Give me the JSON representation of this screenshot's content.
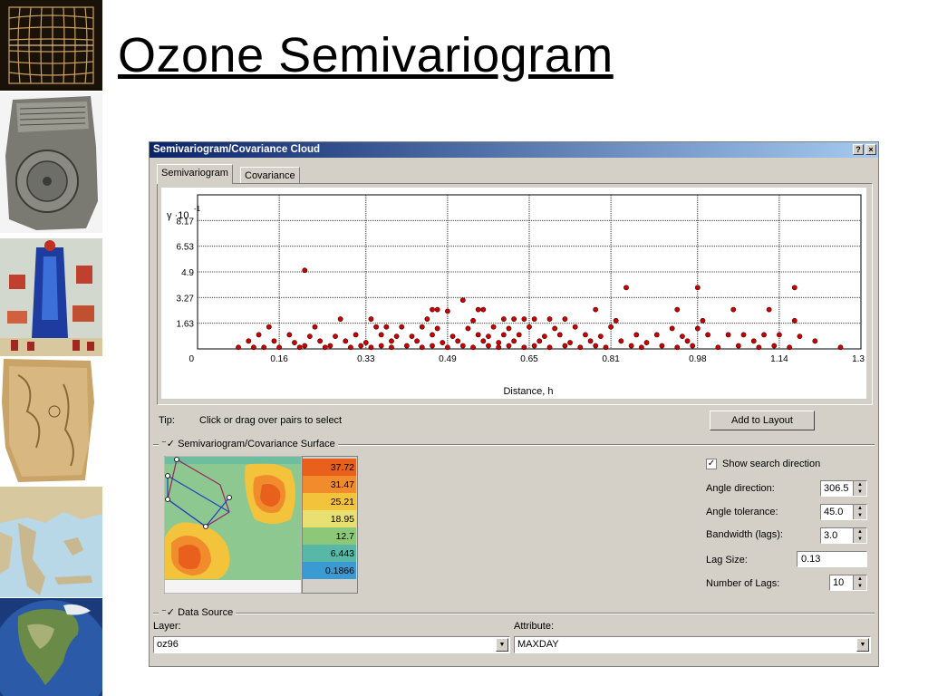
{
  "slide": {
    "title": "Ozone Semivariogram"
  },
  "window": {
    "title": "Semivariogram/Covariance Cloud",
    "help_button": "?",
    "close_button": "×",
    "tabs": [
      "Semivariogram",
      "Covariance"
    ],
    "tip_label": "Tip:",
    "tip_text": "Click or drag over pairs to select",
    "add_to_layout": "Add to Layout",
    "surface_group": "Semivariogram/Covariance Surface",
    "surface_legend": [
      "37.72",
      "31.47",
      "25.21",
      "18.95",
      "12.7",
      "6.443",
      "0.1866"
    ],
    "surface_colors": [
      "#e8601c",
      "#f08c2c",
      "#f3c33c",
      "#e8e070",
      "#8cc878",
      "#58b8a8",
      "#3b9ad2"
    ],
    "show_search_direction": "Show search direction",
    "show_search_checked": true,
    "angle_direction_label": "Angle direction:",
    "angle_direction_value": "306.5",
    "angle_tolerance_label": "Angle tolerance:",
    "angle_tolerance_value": "45.0",
    "bandwidth_label": "Bandwidth (lags):",
    "bandwidth_value": "3.0",
    "lag_size_label": "Lag Size:",
    "lag_size_value": "0.13",
    "num_lags_label": "Number of Lags:",
    "num_lags_value": "10",
    "data_source_group": "Data Source",
    "layer_label": "Layer:",
    "layer_value": "oz96",
    "attribute_label": "Attribute:",
    "attribute_value": "MAXDAY"
  },
  "chart_data": {
    "type": "scatter",
    "ylabel": "γ ·10",
    "ylabel_exponent": "-1",
    "xlabel": "Distance, h",
    "x_ticks": [
      "0",
      "0.16",
      "0.33",
      "0.49",
      "0.65",
      "0.81",
      "0.98",
      "1.14",
      "1.3"
    ],
    "y_ticks": [
      "1.63",
      "3.27",
      "4.9",
      "6.53",
      "8.17"
    ],
    "xlim": [
      0,
      1.3
    ],
    "ylim": [
      0,
      9.8
    ],
    "point_color": "#cc0000",
    "points": [
      [
        0.21,
        5.0
      ],
      [
        0.84,
        3.9
      ],
      [
        0.98,
        3.9
      ],
      [
        1.17,
        3.9
      ],
      [
        0.52,
        3.1
      ],
      [
        0.46,
        2.5
      ],
      [
        0.47,
        2.5
      ],
      [
        0.55,
        2.5
      ],
      [
        0.56,
        2.5
      ],
      [
        0.49,
        2.4
      ],
      [
        0.78,
        2.5
      ],
      [
        0.94,
        2.5
      ],
      [
        1.05,
        2.5
      ],
      [
        1.12,
        2.5
      ],
      [
        0.28,
        1.9
      ],
      [
        0.34,
        1.9
      ],
      [
        0.45,
        1.9
      ],
      [
        0.54,
        1.8
      ],
      [
        0.6,
        1.9
      ],
      [
        0.62,
        1.9
      ],
      [
        0.64,
        1.9
      ],
      [
        0.66,
        1.9
      ],
      [
        0.69,
        1.9
      ],
      [
        0.72,
        1.9
      ],
      [
        0.82,
        1.8
      ],
      [
        0.99,
        1.8
      ],
      [
        1.17,
        1.8
      ],
      [
        0.14,
        1.4
      ],
      [
        0.23,
        1.4
      ],
      [
        0.35,
        1.4
      ],
      [
        0.37,
        1.4
      ],
      [
        0.4,
        1.4
      ],
      [
        0.44,
        1.4
      ],
      [
        0.47,
        1.3
      ],
      [
        0.53,
        1.3
      ],
      [
        0.58,
        1.4
      ],
      [
        0.61,
        1.3
      ],
      [
        0.65,
        1.4
      ],
      [
        0.7,
        1.3
      ],
      [
        0.74,
        1.4
      ],
      [
        0.81,
        1.4
      ],
      [
        0.93,
        1.3
      ],
      [
        0.98,
        1.3
      ],
      [
        0.12,
        0.9
      ],
      [
        0.18,
        0.9
      ],
      [
        0.22,
        0.8
      ],
      [
        0.27,
        0.8
      ],
      [
        0.31,
        0.9
      ],
      [
        0.36,
        0.9
      ],
      [
        0.39,
        0.8
      ],
      [
        0.42,
        0.8
      ],
      [
        0.46,
        0.9
      ],
      [
        0.5,
        0.8
      ],
      [
        0.55,
        0.9
      ],
      [
        0.57,
        0.8
      ],
      [
        0.6,
        0.9
      ],
      [
        0.63,
        0.9
      ],
      [
        0.68,
        0.8
      ],
      [
        0.71,
        0.9
      ],
      [
        0.76,
        0.9
      ],
      [
        0.79,
        0.8
      ],
      [
        0.86,
        0.9
      ],
      [
        0.9,
        0.9
      ],
      [
        0.95,
        0.8
      ],
      [
        1.0,
        0.9
      ],
      [
        1.04,
        0.9
      ],
      [
        1.07,
        0.9
      ],
      [
        1.11,
        0.9
      ],
      [
        1.14,
        0.9
      ],
      [
        1.18,
        0.8
      ],
      [
        0.1,
        0.5
      ],
      [
        0.15,
        0.5
      ],
      [
        0.19,
        0.4
      ],
      [
        0.24,
        0.5
      ],
      [
        0.29,
        0.5
      ],
      [
        0.33,
        0.4
      ],
      [
        0.38,
        0.5
      ],
      [
        0.43,
        0.5
      ],
      [
        0.48,
        0.4
      ],
      [
        0.51,
        0.5
      ],
      [
        0.56,
        0.5
      ],
      [
        0.59,
        0.4
      ],
      [
        0.62,
        0.5
      ],
      [
        0.67,
        0.5
      ],
      [
        0.73,
        0.4
      ],
      [
        0.77,
        0.5
      ],
      [
        0.83,
        0.5
      ],
      [
        0.88,
        0.4
      ],
      [
        0.96,
        0.5
      ],
      [
        1.09,
        0.5
      ],
      [
        1.21,
        0.5
      ],
      [
        0.08,
        0.1
      ],
      [
        0.11,
        0.1
      ],
      [
        0.13,
        0.1
      ],
      [
        0.16,
        0.1
      ],
      [
        0.2,
        0.1
      ],
      [
        0.21,
        0.2
      ],
      [
        0.25,
        0.1
      ],
      [
        0.26,
        0.2
      ],
      [
        0.3,
        0.1
      ],
      [
        0.32,
        0.2
      ],
      [
        0.34,
        0.1
      ],
      [
        0.36,
        0.2
      ],
      [
        0.38,
        0.1
      ],
      [
        0.41,
        0.2
      ],
      [
        0.44,
        0.1
      ],
      [
        0.46,
        0.2
      ],
      [
        0.49,
        0.1
      ],
      [
        0.52,
        0.2
      ],
      [
        0.54,
        0.1
      ],
      [
        0.57,
        0.2
      ],
      [
        0.59,
        0.1
      ],
      [
        0.61,
        0.2
      ],
      [
        0.64,
        0.1
      ],
      [
        0.66,
        0.2
      ],
      [
        0.69,
        0.1
      ],
      [
        0.72,
        0.2
      ],
      [
        0.75,
        0.1
      ],
      [
        0.78,
        0.2
      ],
      [
        0.8,
        0.1
      ],
      [
        0.85,
        0.2
      ],
      [
        0.87,
        0.1
      ],
      [
        0.91,
        0.2
      ],
      [
        0.94,
        0.1
      ],
      [
        0.97,
        0.2
      ],
      [
        1.02,
        0.1
      ],
      [
        1.06,
        0.2
      ],
      [
        1.1,
        0.1
      ],
      [
        1.13,
        0.2
      ],
      [
        1.16,
        0.1
      ],
      [
        1.26,
        0.1
      ]
    ]
  }
}
